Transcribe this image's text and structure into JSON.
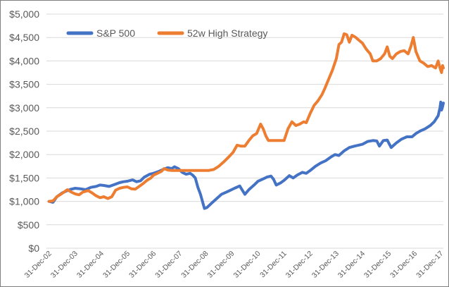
{
  "chart_data": {
    "type": "line",
    "title": "",
    "xlabel": "",
    "ylabel": "",
    "ylim": [
      0,
      5000
    ],
    "y_ticks": [
      0,
      500,
      1000,
      1500,
      2000,
      2500,
      3000,
      3500,
      4000,
      4500,
      5000
    ],
    "y_tick_labels": [
      "$0",
      "$500",
      "$1,000",
      "$1,500",
      "$2,000",
      "$2,500",
      "$3,000",
      "$3,500",
      "$4,000",
      "$4,500",
      "$5,000"
    ],
    "x_range": [
      2002.9,
      2018.1
    ],
    "x_ticks": [
      2003,
      2004,
      2005,
      2006,
      2007,
      2008,
      2009,
      2010,
      2011,
      2012,
      2013,
      2014,
      2015,
      2016,
      2017,
      2018
    ],
    "x_tick_labels": [
      "31-Dec-02",
      "31-Dec-03",
      "31-Dec-04",
      "31-Dec-05",
      "31-Dec-06",
      "31-Dec-07",
      "31-Dec-08",
      "31-Dec-09",
      "31-Dec-10",
      "31-Dec-11",
      "31-Dec-12",
      "31-Dec-13",
      "31-Dec-14",
      "31-Dec-15",
      "31-Dec-16",
      "31-Dec-17"
    ],
    "grid": true,
    "legend_position": "top-left",
    "series": [
      {
        "name": "S&P 500",
        "color": "#4472c4",
        "points": [
          [
            2003.0,
            1000
          ],
          [
            2003.15,
            980
          ],
          [
            2003.3,
            1100
          ],
          [
            2003.5,
            1180
          ],
          [
            2003.7,
            1230
          ],
          [
            2003.85,
            1260
          ],
          [
            2004.0,
            1280
          ],
          [
            2004.2,
            1270
          ],
          [
            2004.4,
            1250
          ],
          [
            2004.6,
            1300
          ],
          [
            2004.8,
            1320
          ],
          [
            2004.95,
            1350
          ],
          [
            2005.1,
            1340
          ],
          [
            2005.3,
            1320
          ],
          [
            2005.5,
            1360
          ],
          [
            2005.7,
            1400
          ],
          [
            2005.85,
            1420
          ],
          [
            2006.0,
            1430
          ],
          [
            2006.2,
            1460
          ],
          [
            2006.35,
            1420
          ],
          [
            2006.5,
            1440
          ],
          [
            2006.65,
            1520
          ],
          [
            2006.85,
            1580
          ],
          [
            2007.0,
            1600
          ],
          [
            2007.2,
            1640
          ],
          [
            2007.4,
            1690
          ],
          [
            2007.55,
            1720
          ],
          [
            2007.7,
            1700
          ],
          [
            2007.8,
            1740
          ],
          [
            2007.95,
            1700
          ],
          [
            2008.1,
            1620
          ],
          [
            2008.25,
            1580
          ],
          [
            2008.4,
            1600
          ],
          [
            2008.5,
            1560
          ],
          [
            2008.6,
            1500
          ],
          [
            2008.7,
            1300
          ],
          [
            2008.8,
            1150
          ],
          [
            2008.9,
            950
          ],
          [
            2008.95,
            850
          ],
          [
            2009.05,
            870
          ],
          [
            2009.2,
            950
          ],
          [
            2009.4,
            1050
          ],
          [
            2009.6,
            1150
          ],
          [
            2009.8,
            1200
          ],
          [
            2009.95,
            1240
          ],
          [
            2010.1,
            1280
          ],
          [
            2010.3,
            1330
          ],
          [
            2010.4,
            1240
          ],
          [
            2010.5,
            1150
          ],
          [
            2010.65,
            1250
          ],
          [
            2010.85,
            1350
          ],
          [
            2011.0,
            1430
          ],
          [
            2011.2,
            1480
          ],
          [
            2011.35,
            1520
          ],
          [
            2011.5,
            1540
          ],
          [
            2011.6,
            1470
          ],
          [
            2011.7,
            1350
          ],
          [
            2011.85,
            1390
          ],
          [
            2012.0,
            1450
          ],
          [
            2012.2,
            1550
          ],
          [
            2012.35,
            1500
          ],
          [
            2012.5,
            1560
          ],
          [
            2012.7,
            1620
          ],
          [
            2012.85,
            1600
          ],
          [
            2013.0,
            1660
          ],
          [
            2013.2,
            1750
          ],
          [
            2013.4,
            1820
          ],
          [
            2013.6,
            1870
          ],
          [
            2013.8,
            1950
          ],
          [
            2013.95,
            2000
          ],
          [
            2014.1,
            1980
          ],
          [
            2014.3,
            2080
          ],
          [
            2014.5,
            2150
          ],
          [
            2014.7,
            2180
          ],
          [
            2014.85,
            2200
          ],
          [
            2015.0,
            2220
          ],
          [
            2015.2,
            2280
          ],
          [
            2015.4,
            2300
          ],
          [
            2015.55,
            2290
          ],
          [
            2015.65,
            2180
          ],
          [
            2015.8,
            2300
          ],
          [
            2015.95,
            2310
          ],
          [
            2016.1,
            2150
          ],
          [
            2016.3,
            2250
          ],
          [
            2016.5,
            2330
          ],
          [
            2016.7,
            2380
          ],
          [
            2016.9,
            2380
          ],
          [
            2017.05,
            2450
          ],
          [
            2017.2,
            2500
          ],
          [
            2017.4,
            2550
          ],
          [
            2017.6,
            2620
          ],
          [
            2017.75,
            2700
          ],
          [
            2017.9,
            2830
          ],
          [
            2017.97,
            3000
          ],
          [
            2018.0,
            3120
          ],
          [
            2018.03,
            2950
          ],
          [
            2018.06,
            3000
          ],
          [
            2018.1,
            3100
          ]
        ]
      },
      {
        "name": "52w High Strategy",
        "color": "#ed7d31",
        "points": [
          [
            2003.0,
            1000
          ],
          [
            2003.15,
            1010
          ],
          [
            2003.3,
            1100
          ],
          [
            2003.5,
            1170
          ],
          [
            2003.7,
            1250
          ],
          [
            2003.85,
            1200
          ],
          [
            2004.0,
            1160
          ],
          [
            2004.15,
            1140
          ],
          [
            2004.3,
            1200
          ],
          [
            2004.5,
            1230
          ],
          [
            2004.65,
            1180
          ],
          [
            2004.8,
            1120
          ],
          [
            2004.95,
            1080
          ],
          [
            2005.1,
            1100
          ],
          [
            2005.25,
            1060
          ],
          [
            2005.4,
            1100
          ],
          [
            2005.55,
            1240
          ],
          [
            2005.7,
            1280
          ],
          [
            2005.85,
            1300
          ],
          [
            2006.0,
            1310
          ],
          [
            2006.15,
            1270
          ],
          [
            2006.3,
            1260
          ],
          [
            2006.45,
            1320
          ],
          [
            2006.6,
            1380
          ],
          [
            2006.75,
            1450
          ],
          [
            2006.9,
            1500
          ],
          [
            2007.0,
            1560
          ],
          [
            2007.15,
            1600
          ],
          [
            2007.3,
            1640
          ],
          [
            2007.4,
            1700
          ],
          [
            2007.55,
            1670
          ],
          [
            2007.7,
            1660
          ],
          [
            2007.9,
            1660
          ],
          [
            2008.2,
            1660
          ],
          [
            2008.5,
            1660
          ],
          [
            2008.8,
            1660
          ],
          [
            2009.1,
            1660
          ],
          [
            2009.3,
            1680
          ],
          [
            2009.5,
            1750
          ],
          [
            2009.7,
            1850
          ],
          [
            2009.9,
            1960
          ],
          [
            2010.05,
            2050
          ],
          [
            2010.2,
            2200
          ],
          [
            2010.35,
            2180
          ],
          [
            2010.5,
            2180
          ],
          [
            2010.65,
            2300
          ],
          [
            2010.8,
            2400
          ],
          [
            2010.95,
            2450
          ],
          [
            2011.1,
            2650
          ],
          [
            2011.2,
            2550
          ],
          [
            2011.3,
            2400
          ],
          [
            2011.4,
            2300
          ],
          [
            2011.6,
            2300
          ],
          [
            2011.8,
            2300
          ],
          [
            2012.0,
            2300
          ],
          [
            2012.15,
            2550
          ],
          [
            2012.3,
            2700
          ],
          [
            2012.45,
            2620
          ],
          [
            2012.6,
            2650
          ],
          [
            2012.75,
            2700
          ],
          [
            2012.85,
            2680
          ],
          [
            2013.0,
            2880
          ],
          [
            2013.15,
            3050
          ],
          [
            2013.3,
            3150
          ],
          [
            2013.45,
            3280
          ],
          [
            2013.55,
            3400
          ],
          [
            2013.7,
            3600
          ],
          [
            2013.85,
            3800
          ],
          [
            2014.0,
            4050
          ],
          [
            2014.1,
            4350
          ],
          [
            2014.2,
            4400
          ],
          [
            2014.3,
            4580
          ],
          [
            2014.4,
            4560
          ],
          [
            2014.5,
            4400
          ],
          [
            2014.6,
            4550
          ],
          [
            2014.75,
            4500
          ],
          [
            2014.85,
            4450
          ],
          [
            2015.0,
            4380
          ],
          [
            2015.15,
            4250
          ],
          [
            2015.3,
            4150
          ],
          [
            2015.4,
            4000
          ],
          [
            2015.55,
            4000
          ],
          [
            2015.7,
            4050
          ],
          [
            2015.85,
            4150
          ],
          [
            2015.95,
            4300
          ],
          [
            2016.05,
            4100
          ],
          [
            2016.15,
            4050
          ],
          [
            2016.3,
            4150
          ],
          [
            2016.45,
            4200
          ],
          [
            2016.6,
            4220
          ],
          [
            2016.75,
            4150
          ],
          [
            2016.85,
            4300
          ],
          [
            2016.95,
            4500
          ],
          [
            2017.05,
            4200
          ],
          [
            2017.2,
            4000
          ],
          [
            2017.35,
            3950
          ],
          [
            2017.5,
            3880
          ],
          [
            2017.65,
            3900
          ],
          [
            2017.8,
            3850
          ],
          [
            2017.9,
            4000
          ],
          [
            2017.97,
            3850
          ],
          [
            2018.03,
            3750
          ],
          [
            2018.07,
            3900
          ],
          [
            2018.1,
            3850
          ]
        ]
      }
    ]
  }
}
